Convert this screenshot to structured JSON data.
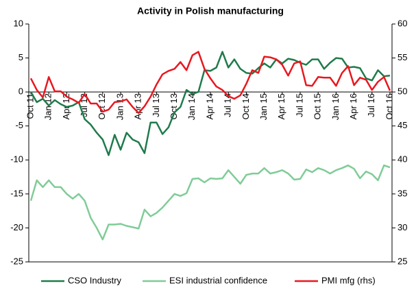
{
  "chart_data": {
    "type": "line",
    "title": "Activity in Polish manufacturing",
    "categories": [
      "Oct 11",
      null,
      null,
      "Jan 12",
      null,
      null,
      "Apr 12",
      null,
      null,
      "Jul 12",
      null,
      null,
      "Oct 12",
      null,
      null,
      "Jan 13",
      null,
      null,
      "Apr 13",
      null,
      null,
      "Jul 13",
      null,
      null,
      "Oct 13",
      null,
      null,
      "Jan 14",
      null,
      null,
      "Apr 14",
      null,
      null,
      "Jul 14",
      null,
      null,
      "Oct 14",
      null,
      null,
      "Jan 15",
      null,
      null,
      "Apr 15",
      null,
      null,
      "Jul 15",
      null,
      null,
      "Oct 15",
      null,
      null,
      "Jan 16",
      null,
      null,
      "Apr 16",
      null,
      null,
      "Jul 16",
      null,
      null,
      "Oct 16"
    ],
    "series": [
      {
        "name": "CSO Industry",
        "color": "#1e7b4b",
        "axis": "y",
        "values": [
          0,
          -1.5,
          -1,
          -2,
          -1.2,
          -1.8,
          -2.2,
          -2,
          -1.5,
          -4,
          -4.8,
          -6,
          -7,
          -9.3,
          -6.3,
          -8.5,
          -6,
          -7,
          -7.4,
          -9,
          -4.5,
          -4.5,
          -6.2,
          -5.2,
          -3,
          -2.2,
          0.3,
          -0.3,
          0,
          3.2,
          3.1,
          3.6,
          5.9,
          3.6,
          4.8,
          3.4,
          2.8,
          2.7,
          3.5,
          4.2,
          3.6,
          4.8,
          4.2,
          4.9,
          4.7,
          4.3,
          4,
          4.8,
          4.8,
          3.4,
          4.3,
          5,
          4.9,
          3.6,
          3.7,
          3.5,
          2,
          1.7,
          3.2,
          2.3,
          2.4
        ]
      },
      {
        "name": "ESI industrial confidence",
        "color": "#7fcc97",
        "axis": "y",
        "values": [
          -16,
          -13,
          -14,
          -13,
          -14,
          -14,
          -15,
          -15.7,
          -15,
          -16,
          -18.5,
          -20,
          -21.7,
          -19.5,
          -19.5,
          -19.4,
          -19.7,
          -19.9,
          -20.1,
          -17.3,
          -18.3,
          -17.8,
          -17,
          -16,
          -15,
          -15.3,
          -14.9,
          -12.8,
          -12.7,
          -13.3,
          -12.7,
          -12.8,
          -12.7,
          -11.5,
          -12.5,
          -13.5,
          -12.2,
          -12,
          -12,
          -11.2,
          -12,
          -11.8,
          -11.5,
          -12,
          -12.9,
          -12.8,
          -11.4,
          -11.8,
          -11.2,
          -11.5,
          -12,
          -11.5,
          -11.2,
          -10.8,
          -11.3,
          -12.7,
          -11.7,
          -12.1,
          -13,
          -10.8,
          -11.1
        ]
      },
      {
        "name": "PMI mfg (rhs)",
        "color": "#e8171e",
        "axis": "y2",
        "values": [
          52,
          50.3,
          49.2,
          52.2,
          50.1,
          50.1,
          49.3,
          48.9,
          48.4,
          49.7,
          48.3,
          48.3,
          47.1,
          47.4,
          48.5,
          48.6,
          48.9,
          47.8,
          46.9,
          47.9,
          49.3,
          51.1,
          52.6,
          53.1,
          53.4,
          54.4,
          53.2,
          55.4,
          55.9,
          53.4,
          52,
          50.8,
          50.3,
          49.4,
          49,
          49.5,
          51.2,
          53.2,
          52.8,
          55.2,
          55.1,
          54.8,
          54,
          52.4,
          54.2,
          54.5,
          51,
          50.9,
          52.2,
          52.1,
          52.1,
          50.9,
          52.8,
          53.8,
          51,
          52.1,
          51.8,
          50.3,
          51.5,
          52.2,
          50.2
        ]
      }
    ],
    "ylim": [
      -25,
      10
    ],
    "yticks": [
      -25,
      -20,
      -15,
      -10,
      -5,
      0,
      5,
      10
    ],
    "y2lim": [
      25,
      60
    ],
    "y2ticks": [
      25,
      30,
      35,
      40,
      45,
      50,
      55,
      60
    ],
    "legend": "bottom"
  }
}
